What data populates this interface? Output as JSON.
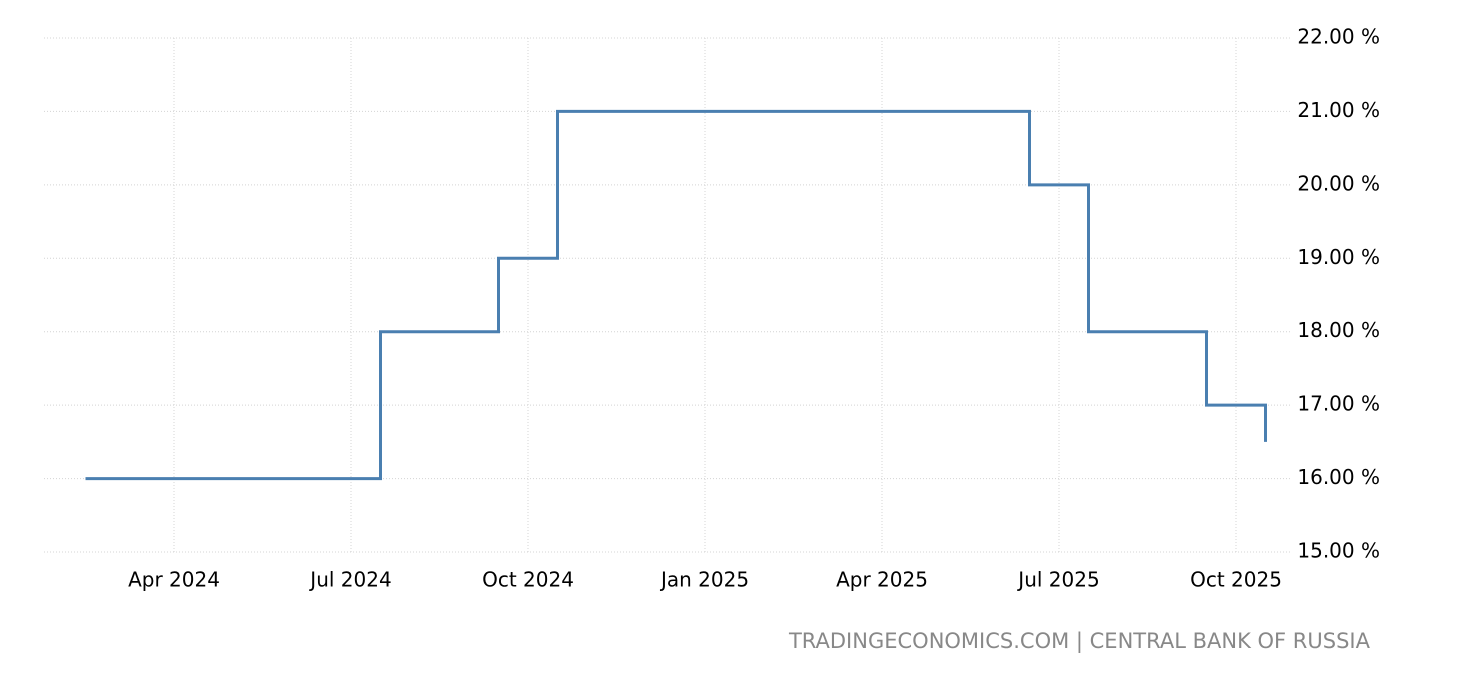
{
  "chart_data": {
    "type": "step-line",
    "source": "TRADINGECONOMICS.COM | CENTRAL BANK OF RUSSIA",
    "x": [
      "2024-02",
      "2024-07",
      "2024-09",
      "2024-10",
      "2025-06",
      "2025-07",
      "2025-09",
      "2025-10"
    ],
    "series": [
      {
        "color": "#4a7fb0",
        "values": [
          16,
          18,
          19,
          21,
          20,
          18,
          17,
          16.5
        ]
      }
    ],
    "ylim": [
      15,
      22
    ],
    "yticks": [
      {
        "value": 15,
        "label": "15.00 %"
      },
      {
        "value": 16,
        "label": "16.00 %"
      },
      {
        "value": 17,
        "label": "17.00 %"
      },
      {
        "value": 18,
        "label": "18.00 %"
      },
      {
        "value": 19,
        "label": "19.00 %"
      },
      {
        "value": 20,
        "label": "20.00 %"
      },
      {
        "value": 21,
        "label": "21.00 %"
      },
      {
        "value": 22,
        "label": "22.00 %"
      }
    ],
    "xticks": [
      {
        "value": "2024-04",
        "label": "Apr 2024"
      },
      {
        "value": "2024-07",
        "label": "Jul 2024"
      },
      {
        "value": "2024-10",
        "label": "Oct 2024"
      },
      {
        "value": "2025-01",
        "label": "Jan 2025"
      },
      {
        "value": "2025-04",
        "label": "Apr 2025"
      },
      {
        "value": "2025-07",
        "label": "Jul 2025"
      },
      {
        "value": "2025-10",
        "label": "Oct 2025"
      }
    ],
    "grid": true
  }
}
